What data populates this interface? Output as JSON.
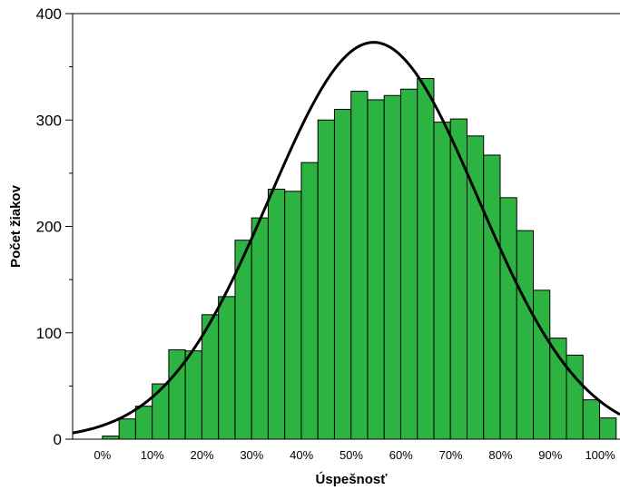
{
  "chart_data": {
    "type": "bar",
    "subtype": "histogram with normal distribution curve",
    "xlabel": "Úspešnosť",
    "ylabel": "Počet žiakov",
    "x_ticks": [
      "0%",
      "10%",
      "20%",
      "30%",
      "40%",
      "50%",
      "60%",
      "70%",
      "80%",
      "90%",
      "100%"
    ],
    "y_ticks": [
      0,
      100,
      200,
      300,
      400
    ],
    "xlim": [
      -6,
      104
    ],
    "ylim": [
      0,
      400
    ],
    "bin_width": 3.33,
    "bin_start": 0,
    "values": [
      3,
      19,
      31,
      52,
      84,
      83,
      117,
      134,
      187,
      208,
      235,
      233,
      260,
      300,
      310,
      327,
      319,
      323,
      329,
      339,
      298,
      301,
      285,
      267,
      227,
      196,
      140,
      95,
      79,
      37,
      20
    ],
    "normal_curve": {
      "mean": 54.5,
      "sd": 21.0,
      "peak": 373
    },
    "bar_color": "#2cb342",
    "bar_edge_color": "#000000",
    "curve_color": "#000000",
    "grid": false
  }
}
